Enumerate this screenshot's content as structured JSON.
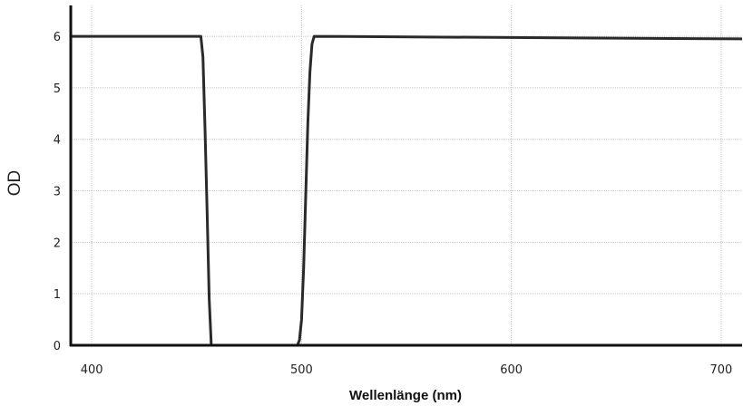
{
  "chart_data": {
    "type": "line",
    "title": "",
    "xlabel": "Wellenlänge (nm)",
    "ylabel": "OD",
    "xlim": [
      390,
      710
    ],
    "ylim": [
      0,
      6.6
    ],
    "xticks": [
      400,
      500,
      600,
      700
    ],
    "xtick_labels": [
      "400",
      "500",
      "600",
      "700"
    ],
    "yticks": [
      0,
      1,
      2,
      3,
      4,
      5,
      6
    ],
    "ytick_labels": [
      "0",
      "1",
      "2",
      "3",
      "4",
      "5",
      "6"
    ],
    "grid": true,
    "legend": "none",
    "colors": {
      "line": "#2a2a2a",
      "grid": "#c8c8c8",
      "axis": "#111111"
    },
    "series": [
      {
        "x": [
          390,
          452,
          453,
          454,
          455,
          456,
          457,
          498,
          499,
          500,
          501,
          502,
          503,
          504,
          505,
          506,
          710
        ],
        "y": [
          6,
          6,
          5.6,
          4.2,
          2.6,
          0.9,
          0,
          0,
          0.1,
          0.5,
          1.5,
          2.9,
          4.3,
          5.3,
          5.85,
          6,
          5.95
        ]
      }
    ]
  }
}
